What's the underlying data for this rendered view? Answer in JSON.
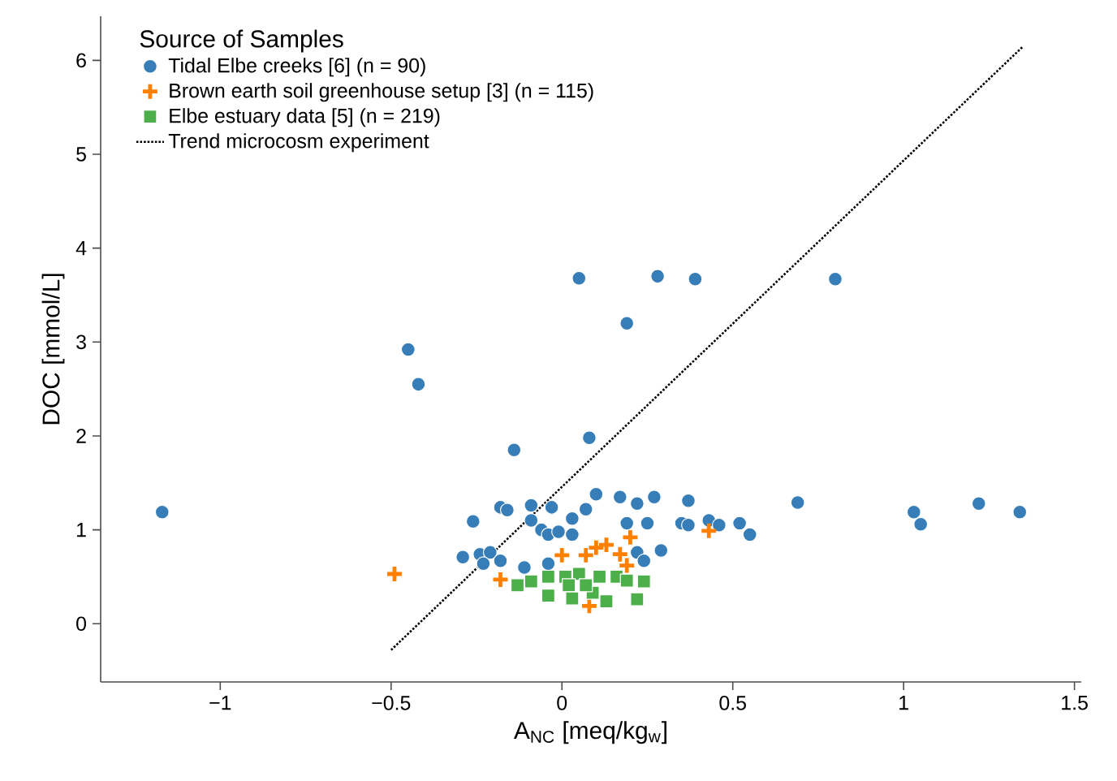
{
  "chart_data": {
    "type": "scatter",
    "xlabel": "A$_{NC}$ [meq/kg$_{w}$]",
    "ylabel": "DOC [mmol/L]",
    "legend_title": "Source of Samples",
    "legend": "top left",
    "grid": false,
    "xlim": [
      -1.35,
      1.52
    ],
    "ylim": [
      -0.62,
      6.47
    ],
    "xticks": [
      {
        "value": -1,
        "label": "−1"
      },
      {
        "value": -0.5,
        "label": "−0.5"
      },
      0,
      0.5,
      1,
      1.5
    ],
    "yticks": [
      0,
      1,
      2,
      3,
      4,
      5,
      6
    ],
    "series": [
      {
        "name": "Tidal Elbe creeks [6] (n = 90)",
        "color": "#377eb8",
        "marker": "circle",
        "x": [
          -1.17,
          -0.45,
          -0.42,
          -0.14,
          0.05,
          0.08,
          0.28,
          0.39,
          0.8,
          0.19,
          0.69,
          1.03,
          1.05,
          1.22,
          1.34,
          0.1,
          0.17,
          0.27,
          0.37,
          0.22,
          0.19,
          0.25,
          0.35,
          0.37,
          0.43,
          0.46,
          0.52,
          0.55,
          0.29,
          0.22,
          0.24,
          -0.26,
          -0.18,
          -0.16,
          -0.09,
          -0.03,
          -0.09,
          -0.06,
          -0.04,
          -0.01,
          0.03,
          0.03,
          0.07,
          -0.29,
          -0.24,
          -0.21,
          -0.23,
          -0.18,
          -0.11,
          -0.04
        ],
        "values": [
          1.19,
          2.92,
          2.55,
          1.85,
          3.68,
          1.98,
          3.7,
          3.67,
          3.67,
          3.2,
          1.29,
          1.19,
          1.06,
          1.28,
          1.19,
          1.38,
          1.35,
          1.35,
          1.31,
          1.28,
          1.07,
          1.07,
          1.07,
          1.05,
          1.1,
          1.05,
          1.07,
          0.95,
          0.78,
          0.76,
          0.67,
          1.09,
          1.24,
          1.21,
          1.26,
          1.24,
          1.1,
          1.0,
          0.95,
          0.98,
          0.95,
          1.12,
          1.22,
          0.71,
          0.74,
          0.76,
          0.64,
          0.67,
          0.6,
          0.64
        ]
      },
      {
        "name": "Brown earth soil greenhouse setup [3] (n = 115)",
        "color": "#ff7f00",
        "marker": "cross",
        "x": [
          -0.49,
          -0.18,
          0.2,
          0.43,
          0.17,
          0.1,
          0.13,
          0.07,
          0.0,
          0.19,
          0.08
        ],
        "values": [
          0.53,
          0.47,
          0.92,
          0.99,
          0.74,
          0.81,
          0.84,
          0.73,
          0.73,
          0.62,
          0.19
        ]
      },
      {
        "name": "Elbe estuary data [5] (n = 219)",
        "color": "#4daf4a",
        "marker": "square",
        "x": [
          -0.13,
          -0.09,
          -0.04,
          0.01,
          0.05,
          0.11,
          0.16,
          0.19,
          0.24,
          0.09,
          0.22,
          0.02,
          0.07,
          -0.04,
          0.03,
          0.13
        ],
        "values": [
          0.41,
          0.45,
          0.5,
          0.5,
          0.53,
          0.5,
          0.5,
          0.46,
          0.45,
          0.33,
          0.26,
          0.41,
          0.41,
          0.3,
          0.27,
          0.24
        ]
      },
      {
        "name": "Trend microcosm experiment",
        "type": "line",
        "color": "#000000",
        "marker": "none",
        "line_style": "dotted",
        "x": [
          -0.5,
          1.35
        ],
        "values": [
          -0.28,
          6.15
        ]
      }
    ]
  }
}
